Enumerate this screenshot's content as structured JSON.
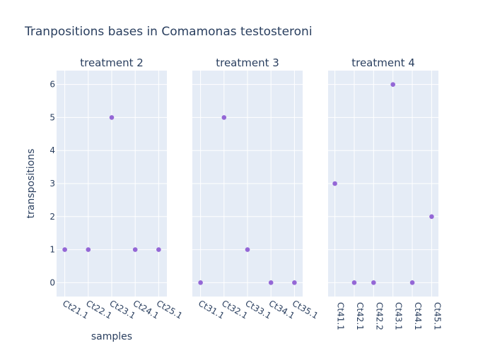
{
  "chart_data": {
    "type": "scatter",
    "title": "Tranpositions bases in Comamonas testosteroni",
    "xlabel": "samples",
    "ylabel": "transpositions",
    "ylim": [
      -0.42,
      6.42
    ],
    "yticks": [
      0,
      1,
      2,
      3,
      4,
      5,
      6
    ],
    "marker_color": "#9467d6",
    "grid": true,
    "panels": [
      {
        "name": "treatment 2",
        "categories": [
          "Ct21.1",
          "Ct22.1",
          "Ct23.1",
          "Ct24.1",
          "Ct25.1"
        ],
        "values": [
          1,
          1,
          5,
          1,
          1
        ]
      },
      {
        "name": "treatment 3",
        "categories": [
          "Ct31.1",
          "Ct32.1",
          "Ct33.1",
          "Ct34.1",
          "Ct35.1"
        ],
        "values": [
          0,
          5,
          1,
          0,
          0
        ]
      },
      {
        "name": "treatment 4",
        "categories": [
          "Ct41.1",
          "Ct42.1",
          "Ct42.2",
          "Ct43.1",
          "Ct44.1",
          "Ct45.1"
        ],
        "values": [
          3,
          0,
          0,
          6,
          0,
          2
        ]
      }
    ]
  }
}
